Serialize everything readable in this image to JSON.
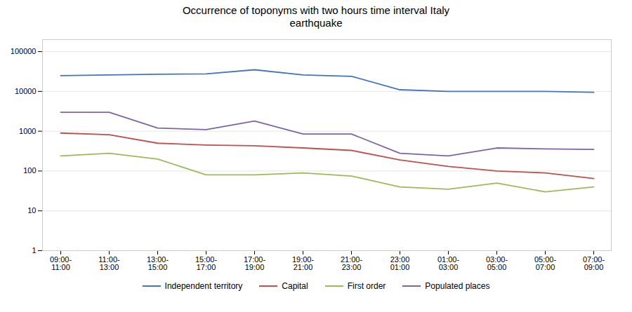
{
  "chart_data": {
    "type": "line",
    "title": "Occurrence of toponyms with two hours time interval Italy\nearthquake",
    "categories": [
      "09:00-\n11:00",
      "11:00-\n13:00",
      "13:00-\n15:00",
      "15:00-\n17:00",
      "17:00-\n19:00",
      "19:00-\n21:00",
      "21:00-\n23:00",
      "23:00\n01:00",
      "01:00-\n03:00",
      "03:00-\n05:00",
      "05:00-\n07:00",
      "07:00-\n09:00"
    ],
    "series": [
      {
        "name": "Independent territory",
        "color": "#4472C4",
        "values": [
          25000,
          26000,
          27000,
          27500,
          35000,
          26000,
          24000,
          11000,
          10000,
          10000,
          10000,
          9500
        ]
      },
      {
        "name": "Capital",
        "color": "#C0504D",
        "values": [
          900,
          820,
          500,
          450,
          430,
          380,
          330,
          190,
          130,
          100,
          90,
          65
        ]
      },
      {
        "name": "First order",
        "color": "#9BBB59",
        "values": [
          240,
          280,
          200,
          80,
          80,
          90,
          75,
          40,
          35,
          50,
          30,
          40
        ]
      },
      {
        "name": "Populated places",
        "color": "#8064A2",
        "values": [
          3000,
          3000,
          1200,
          1100,
          1800,
          850,
          850,
          280,
          240,
          380,
          360,
          350
        ]
      }
    ],
    "ylim": [
      1,
      200000
    ],
    "yticks": [
      1,
      10,
      100,
      1000,
      10000,
      100000
    ],
    "log": "y",
    "grid": true,
    "legend": "bottom"
  }
}
